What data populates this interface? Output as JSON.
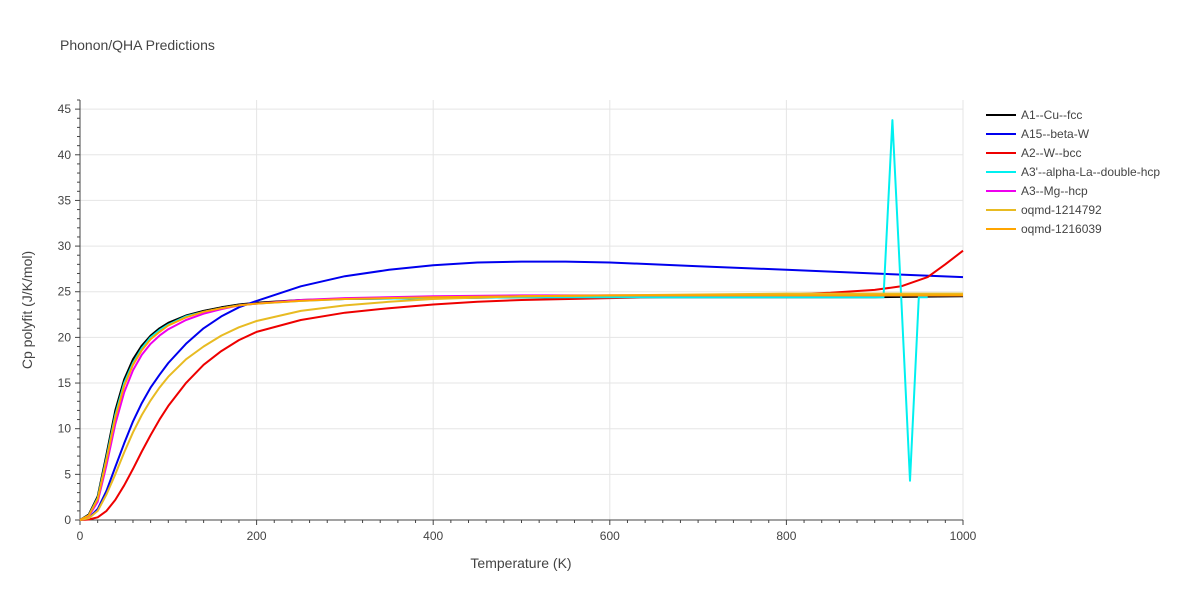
{
  "chart_data": {
    "type": "line",
    "title": "Phonon/QHA Predictions",
    "xlabel": "Temperature (K)",
    "ylabel": "Cp polyfit (J/K/mol)",
    "xlim": [
      0,
      1000
    ],
    "ylim": [
      0,
      46
    ],
    "xticks": [
      0,
      200,
      400,
      600,
      800,
      1000
    ],
    "yticks": [
      0,
      5,
      10,
      15,
      20,
      25,
      30,
      35,
      40,
      45
    ],
    "grid": true,
    "legend_position": "right",
    "series": [
      {
        "name": "A1--Cu--fcc",
        "color": "#000000",
        "x": [
          0,
          10,
          20,
          30,
          40,
          50,
          60,
          70,
          80,
          90,
          100,
          120,
          140,
          160,
          180,
          200,
          250,
          300,
          400,
          500,
          600,
          700,
          800,
          900,
          1000
        ],
        "y": [
          0,
          0.6,
          2.6,
          7.2,
          12.0,
          15.4,
          17.6,
          19.1,
          20.2,
          21.0,
          21.6,
          22.4,
          22.9,
          23.3,
          23.6,
          23.8,
          24.1,
          24.2,
          24.3,
          24.4,
          24.4,
          24.4,
          24.4,
          24.4,
          24.5
        ]
      },
      {
        "name": "A15--beta-W",
        "color": "#0000ee",
        "x": [
          0,
          10,
          20,
          30,
          40,
          50,
          60,
          70,
          80,
          90,
          100,
          120,
          140,
          160,
          180,
          200,
          250,
          300,
          350,
          400,
          450,
          500,
          550,
          600,
          700,
          800,
          900,
          1000
        ],
        "y": [
          0,
          0.2,
          1.2,
          3.2,
          5.8,
          8.4,
          10.8,
          12.8,
          14.5,
          15.9,
          17.2,
          19.3,
          21.0,
          22.3,
          23.3,
          24.0,
          25.6,
          26.7,
          27.4,
          27.9,
          28.2,
          28.3,
          28.3,
          28.2,
          27.8,
          27.4,
          27.0,
          26.6
        ]
      },
      {
        "name": "A2--W--bcc",
        "color": "#ee0000",
        "x": [
          0,
          10,
          20,
          30,
          40,
          50,
          60,
          70,
          80,
          90,
          100,
          120,
          140,
          160,
          180,
          200,
          250,
          300,
          350,
          400,
          450,
          500,
          600,
          700,
          800,
          850,
          900,
          930,
          960,
          980,
          1000
        ],
        "y": [
          0,
          0.05,
          0.3,
          1.0,
          2.2,
          3.8,
          5.6,
          7.5,
          9.3,
          11.0,
          12.5,
          15.0,
          17.0,
          18.5,
          19.7,
          20.6,
          21.9,
          22.7,
          23.2,
          23.6,
          23.9,
          24.1,
          24.3,
          24.5,
          24.7,
          24.9,
          25.2,
          25.6,
          26.6,
          28.0,
          29.5
        ]
      },
      {
        "name": "A3'--alpha-La--double-hcp",
        "color": "#00f0f0",
        "x": [
          0,
          10,
          20,
          30,
          40,
          50,
          60,
          70,
          80,
          90,
          100,
          120,
          140,
          160,
          180,
          200,
          250,
          300,
          400,
          500,
          600,
          700,
          800,
          900,
          910,
          920,
          930,
          940,
          950,
          960
        ],
        "y": [
          0,
          0.5,
          2.4,
          6.8,
          11.5,
          15.0,
          17.2,
          18.8,
          20.0,
          20.8,
          21.4,
          22.3,
          22.8,
          23.2,
          23.5,
          23.7,
          24.0,
          24.2,
          24.3,
          24.4,
          24.4,
          24.4,
          24.4,
          24.4,
          24.4,
          43.8,
          24.4,
          4.3,
          24.4,
          24.4
        ]
      },
      {
        "name": "A3--Mg--hcp",
        "color": "#ee00ee",
        "x": [
          0,
          10,
          20,
          30,
          40,
          50,
          60,
          70,
          80,
          90,
          100,
          120,
          140,
          160,
          180,
          200,
          250,
          300,
          400,
          500,
          600,
          700,
          800,
          900,
          1000
        ],
        "y": [
          0,
          0.4,
          2.0,
          6.0,
          10.5,
          14.0,
          16.4,
          18.1,
          19.3,
          20.2,
          20.9,
          21.9,
          22.6,
          23.1,
          23.5,
          23.7,
          24.1,
          24.3,
          24.5,
          24.6,
          24.6,
          24.6,
          24.6,
          24.6,
          24.6
        ]
      },
      {
        "name": "oqmd-1214792",
        "color": "#e8bb22",
        "x": [
          0,
          10,
          20,
          30,
          40,
          50,
          60,
          70,
          80,
          90,
          100,
          120,
          140,
          160,
          180,
          200,
          250,
          300,
          350,
          400,
          500,
          600,
          700,
          800,
          900,
          1000
        ],
        "y": [
          0,
          0.2,
          1.0,
          2.8,
          5.0,
          7.4,
          9.6,
          11.5,
          13.1,
          14.5,
          15.7,
          17.6,
          19.0,
          20.2,
          21.1,
          21.8,
          22.9,
          23.5,
          23.9,
          24.2,
          24.5,
          24.6,
          24.7,
          24.8,
          24.8,
          24.8
        ]
      },
      {
        "name": "oqmd-1216039",
        "color": "#ffa500",
        "x": [
          0,
          10,
          20,
          30,
          40,
          50,
          60,
          70,
          80,
          90,
          100,
          120,
          140,
          160,
          180,
          200,
          250,
          300,
          400,
          500,
          600,
          700,
          800,
          900,
          1000
        ],
        "y": [
          0,
          0.5,
          2.3,
          6.6,
          11.2,
          14.7,
          17.0,
          18.6,
          19.8,
          20.6,
          21.3,
          22.2,
          22.8,
          23.2,
          23.5,
          23.7,
          24.0,
          24.2,
          24.4,
          24.5,
          24.6,
          24.6,
          24.6,
          24.6,
          24.6
        ]
      }
    ]
  }
}
